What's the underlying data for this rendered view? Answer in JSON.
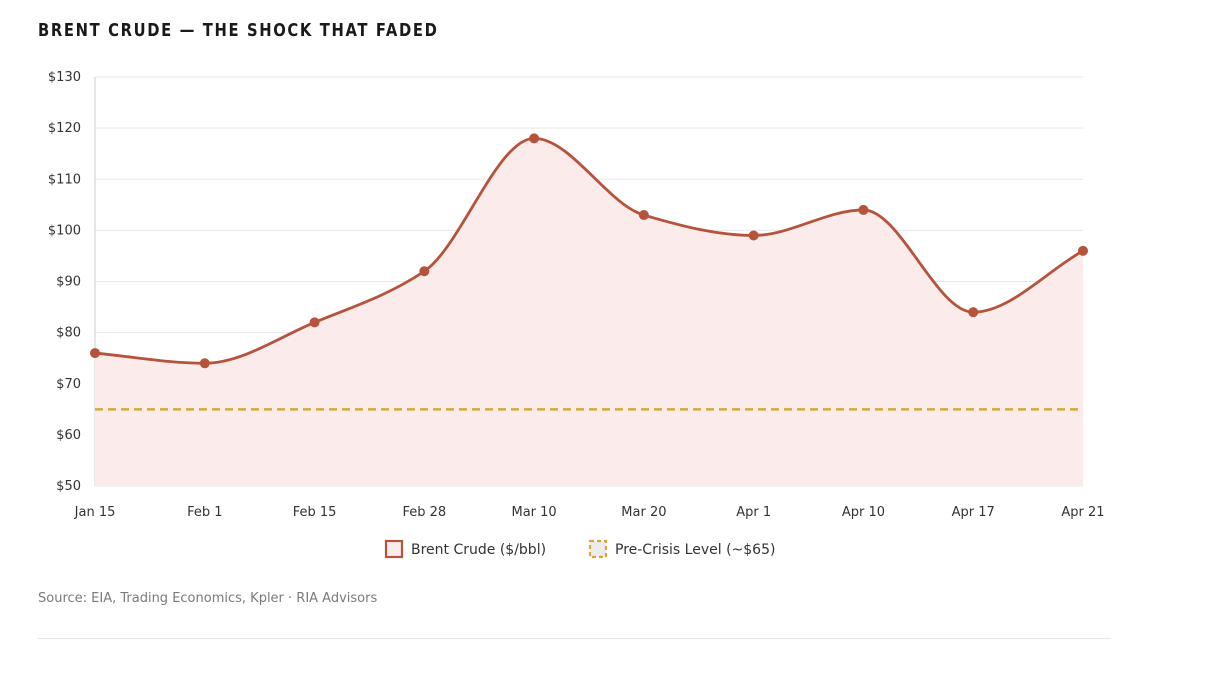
{
  "title": "BRENT CRUDE — THE SHOCK THAT FADED",
  "source": "Source: EIA, Trading Economics, Kpler · RIA Advisors",
  "colors": {
    "series": "#b5533c",
    "fill": "#fbeceb",
    "reference": "#d4a93a",
    "text": "#333333"
  },
  "chart_data": {
    "type": "line",
    "title": "BRENT CRUDE — THE SHOCK THAT FADED",
    "xlabel": "",
    "ylabel": "",
    "categories": [
      "Jan 15",
      "Feb 1",
      "Feb 15",
      "Feb 28",
      "Mar 10",
      "Mar 20",
      "Apr 1",
      "Apr 10",
      "Apr 17",
      "Apr 21"
    ],
    "series": [
      {
        "name": "Brent Crude ($/bbl)",
        "values": [
          76,
          74,
          82,
          92,
          118,
          103,
          99,
          104,
          84,
          96
        ],
        "color": "#b5533c",
        "style": "smooth-line-with-markers-and-area-fill"
      },
      {
        "name": "Pre-Crisis Level (~$65)",
        "values": [
          65,
          65,
          65,
          65,
          65,
          65,
          65,
          65,
          65,
          65
        ],
        "color": "#d4a93a",
        "style": "dashed"
      }
    ],
    "ylim": [
      50,
      130
    ],
    "yticks": [
      50,
      60,
      70,
      80,
      90,
      100,
      110,
      120,
      130
    ],
    "ytick_labels": [
      "$50",
      "$60",
      "$70",
      "$80",
      "$90",
      "$100",
      "$110",
      "$120",
      "$130"
    ],
    "grid": true,
    "legend": "bottom-center"
  }
}
